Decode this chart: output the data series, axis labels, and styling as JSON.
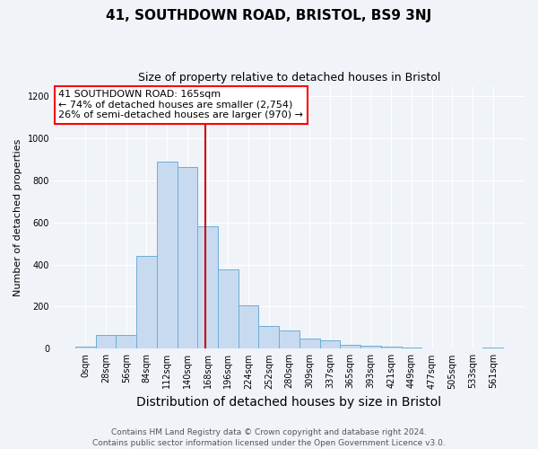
{
  "title": "41, SOUTHDOWN ROAD, BRISTOL, BS9 3NJ",
  "subtitle": "Size of property relative to detached houses in Bristol",
  "xlabel": "Distribution of detached houses by size in Bristol",
  "ylabel": "Number of detached properties",
  "bar_labels": [
    "0sqm",
    "28sqm",
    "56sqm",
    "84sqm",
    "112sqm",
    "140sqm",
    "168sqm",
    "196sqm",
    "224sqm",
    "252sqm",
    "280sqm",
    "309sqm",
    "337sqm",
    "365sqm",
    "393sqm",
    "421sqm",
    "449sqm",
    "477sqm",
    "505sqm",
    "533sqm",
    "561sqm"
  ],
  "bar_values": [
    10,
    65,
    65,
    440,
    890,
    865,
    580,
    375,
    205,
    110,
    85,
    50,
    40,
    20,
    15,
    8,
    5,
    3,
    3,
    3,
    5
  ],
  "bar_color": "#c8daf0",
  "bar_edge_color": "#6baed6",
  "annotation_line_color": "#cc0000",
  "ylim": [
    0,
    1250
  ],
  "yticks": [
    0,
    200,
    400,
    600,
    800,
    1000,
    1200
  ],
  "background_color": "#f0f4f8",
  "grid_color": "#ffffff",
  "annotation_text_line1": "41 SOUTHDOWN ROAD: 165sqm",
  "annotation_text_line2": "← 74% of detached houses are smaller (2,754)",
  "annotation_text_line3": "26% of semi-detached houses are larger (970) →",
  "footer_line1": "Contains HM Land Registry data © Crown copyright and database right 2024.",
  "footer_line2": "Contains public sector information licensed under the Open Government Licence v3.0.",
  "title_fontsize": 11,
  "subtitle_fontsize": 9,
  "xlabel_fontsize": 10,
  "ylabel_fontsize": 8,
  "tick_fontsize": 7,
  "annotation_fontsize": 8,
  "footer_fontsize": 6.5
}
